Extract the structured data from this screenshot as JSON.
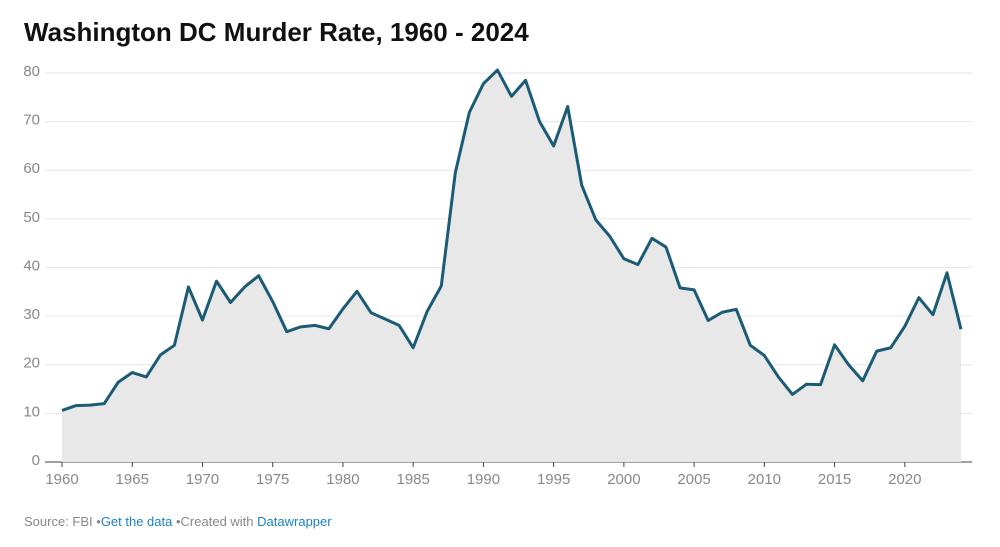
{
  "chart_data": {
    "type": "line",
    "title": "Washington DC Murder Rate, 1960 - 2024",
    "x": [
      1960,
      1961,
      1962,
      1963,
      1964,
      1965,
      1966,
      1967,
      1968,
      1969,
      1970,
      1971,
      1972,
      1973,
      1974,
      1975,
      1976,
      1977,
      1978,
      1979,
      1980,
      1981,
      1982,
      1983,
      1984,
      1985,
      1986,
      1987,
      1988,
      1989,
      1990,
      1991,
      1992,
      1993,
      1994,
      1995,
      1996,
      1997,
      1998,
      1999,
      2000,
      2001,
      2002,
      2003,
      2004,
      2005,
      2006,
      2007,
      2008,
      2009,
      2010,
      2011,
      2012,
      2013,
      2014,
      2015,
      2016,
      2017,
      2018,
      2019,
      2020,
      2021,
      2022,
      2023,
      2024
    ],
    "values": [
      10.6,
      11.6,
      11.7,
      12.0,
      16.4,
      18.4,
      17.5,
      22.0,
      24.0,
      36.0,
      29.2,
      37.2,
      32.8,
      36.0,
      38.3,
      33.0,
      26.8,
      27.8,
      28.1,
      27.4,
      31.5,
      35.1,
      30.7,
      29.4,
      28.1,
      23.5,
      31.0,
      36.2,
      59.5,
      71.9,
      77.8,
      80.6,
      75.2,
      78.5,
      70.0,
      65.0,
      73.1,
      56.9,
      49.8,
      46.4,
      41.8,
      40.6,
      46.0,
      44.2,
      35.8,
      35.4,
      29.1,
      30.8,
      31.4,
      24.0,
      21.9,
      17.5,
      13.9,
      16.0,
      15.9,
      24.1,
      20.0,
      16.7,
      22.8,
      23.5,
      27.9,
      33.8,
      30.3,
      38.9,
      27.3
    ],
    "color": "#1b5b75",
    "area_color": "#e8e8e8",
    "xlim": [
      1960,
      2024
    ],
    "xticks": [
      1960,
      1965,
      1970,
      1975,
      1980,
      1985,
      1990,
      1995,
      2000,
      2005,
      2010,
      2015,
      2020
    ],
    "ylim": [
      0,
      80
    ],
    "yticks": [
      0,
      10,
      20,
      30,
      40,
      50,
      60,
      70,
      80
    ],
    "grid": true
  },
  "footer": {
    "source": "Source: FBI",
    "data_link": "Get the data",
    "created": "Created with",
    "tool_link": "Datawrapper"
  }
}
